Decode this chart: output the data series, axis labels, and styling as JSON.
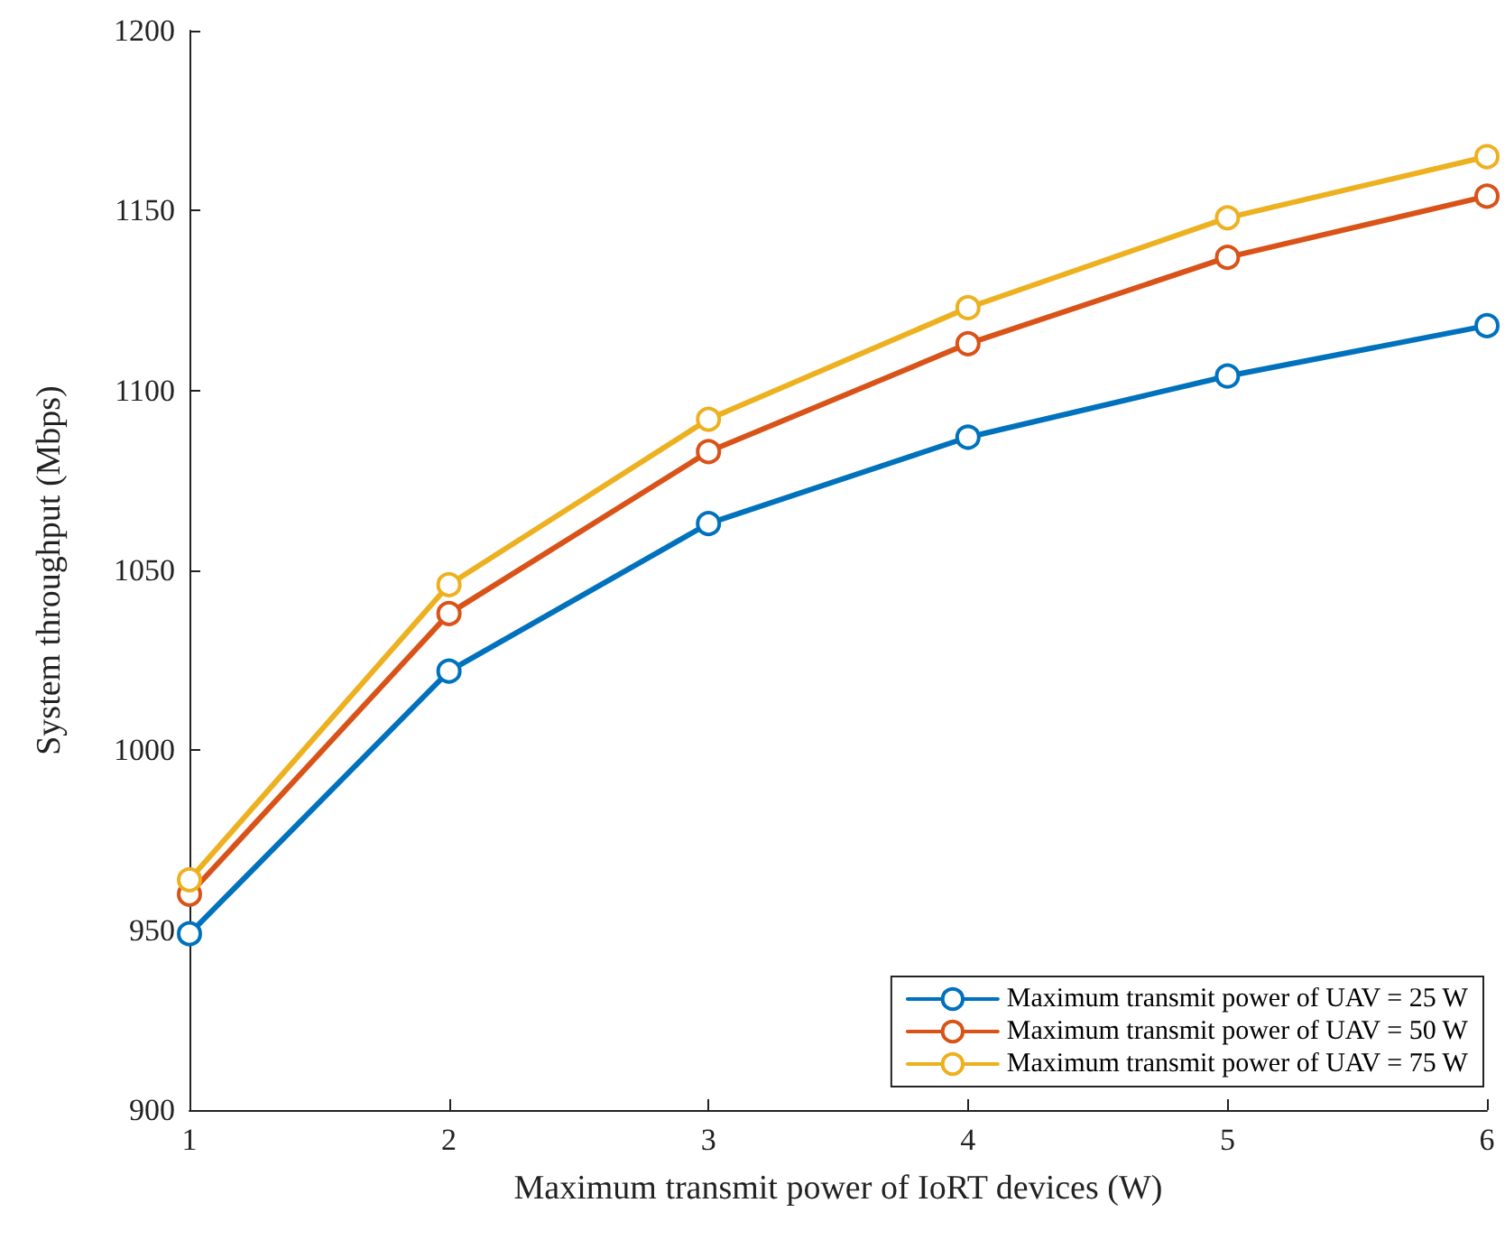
{
  "chart_data": {
    "type": "line",
    "xlabel": "Maximum transmit power of IoRT devices (W)",
    "ylabel": "System throughput (Mbps)",
    "x": [
      1,
      2,
      3,
      4,
      5,
      6
    ],
    "xlim": [
      1,
      6
    ],
    "xticks": [
      1,
      2,
      3,
      4,
      5,
      6
    ],
    "ylim": [
      900,
      1200
    ],
    "yticks": [
      900,
      950,
      1000,
      1050,
      1100,
      1150,
      1200
    ],
    "series": [
      {
        "name": "Maximum transmit power of UAV = 25 W",
        "color": "#0072bd",
        "values": [
          949,
          1022,
          1063,
          1087,
          1104,
          1118
        ]
      },
      {
        "name": "Maximum transmit power of UAV = 50 W",
        "color": "#d95319",
        "values": [
          960,
          1038,
          1083,
          1113,
          1137,
          1154
        ]
      },
      {
        "name": "Maximum transmit power of UAV = 75 W",
        "color": "#edb120",
        "values": [
          964,
          1046,
          1092,
          1123,
          1148,
          1165
        ]
      }
    ],
    "marker": "circle",
    "line_style": "solid",
    "grid": false,
    "legend": "bottom right"
  }
}
